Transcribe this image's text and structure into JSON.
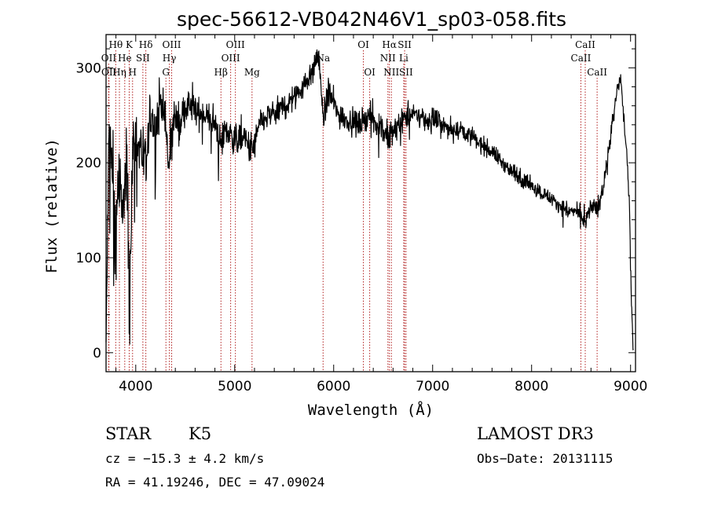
{
  "chart_data": {
    "type": "line",
    "title": "spec-56612-VB042N46V1_sp03-058.fits",
    "xlabel": "Wavelength (Å)",
    "ylabel": "Flux (relative)",
    "xlim": [
      3700,
      9050
    ],
    "ylim": [
      -20,
      335
    ],
    "xticks": [
      4000,
      5000,
      6000,
      7000,
      8000,
      9000
    ],
    "yticks": [
      0,
      100,
      200,
      300
    ],
    "xtick_labels": [
      "4000",
      "5000",
      "6000",
      "7000",
      "8000",
      "9000"
    ],
    "ytick_labels": [
      "0",
      "100",
      "200",
      "300"
    ],
    "spectrum_anchor_points": {
      "wavelength": [
        3700,
        3730,
        3760,
        3790,
        3820,
        3850,
        3880,
        3910,
        3935,
        3970,
        4000,
        4050,
        4100,
        4150,
        4200,
        4250,
        4300,
        4340,
        4380,
        4450,
        4500,
        4600,
        4700,
        4800,
        4861,
        4900,
        5000,
        5100,
        5175,
        5250,
        5350,
        5450,
        5550,
        5650,
        5750,
        5800,
        5850,
        5893,
        5950,
        6050,
        6150,
        6250,
        6350,
        6450,
        6563,
        6650,
        6750,
        6850,
        6950,
        7050,
        7150,
        7300,
        7450,
        7600,
        7750,
        7900,
        8050,
        8200,
        8350,
        8450,
        8500,
        8542,
        8600,
        8662,
        8720,
        8780,
        8830,
        8870,
        8900,
        8930,
        8960,
        8990,
        9010,
        9030
      ],
      "flux": [
        10,
        230,
        200,
        110,
        180,
        160,
        150,
        200,
        60,
        210,
        230,
        215,
        190,
        250,
        230,
        270,
        240,
        190,
        250,
        240,
        260,
        255,
        250,
        240,
        220,
        235,
        225,
        225,
        210,
        240,
        250,
        255,
        265,
        275,
        290,
        300,
        315,
        245,
        275,
        250,
        245,
        240,
        250,
        240,
        225,
        240,
        250,
        250,
        245,
        245,
        235,
        235,
        222,
        212,
        195,
        182,
        172,
        162,
        150,
        148,
        145,
        135,
        155,
        150,
        172,
        215,
        250,
        280,
        290,
        250,
        210,
        150,
        50,
        -5
      ],
      "noise": [
        12,
        45,
        55,
        60,
        60,
        60,
        55,
        50,
        55,
        50,
        40,
        30,
        35,
        30,
        30,
        28,
        25,
        30,
        25,
        20,
        18,
        18,
        18,
        18,
        25,
        18,
        18,
        15,
        25,
        15,
        15,
        15,
        15,
        15,
        15,
        15,
        15,
        20,
        18,
        15,
        15,
        15,
        15,
        14,
        20,
        14,
        14,
        12,
        12,
        12,
        10,
        10,
        10,
        10,
        9,
        9,
        9,
        9,
        9,
        9,
        12,
        12,
        10,
        12,
        10,
        10,
        10,
        10,
        10,
        10,
        10,
        10,
        10,
        10
      ]
    },
    "lines": [
      {
        "label": "Hθ",
        "wavelength": 3798,
        "row": 0
      },
      {
        "label": "K",
        "wavelength": 3934,
        "row": 0
      },
      {
        "label": "Hδ",
        "wavelength": 4102,
        "row": 0
      },
      {
        "label": "OIII",
        "wavelength": 4363,
        "row": 0
      },
      {
        "label": "OIII",
        "wavelength": 5007,
        "row": 0
      },
      {
        "label": "OI",
        "wavelength": 6300,
        "row": 0
      },
      {
        "label": "Hα",
        "wavelength": 6563,
        "row": 0
      },
      {
        "label": "SII",
        "wavelength": 6717,
        "row": 0
      },
      {
        "label": "CaII",
        "wavelength": 8542,
        "row": 0
      },
      {
        "label": "OII",
        "wavelength": 3727,
        "row": 1
      },
      {
        "label": "He",
        "wavelength": 3889,
        "row": 1
      },
      {
        "label": "SII",
        "wavelength": 4072,
        "row": 1
      },
      {
        "label": "Hγ",
        "wavelength": 4340,
        "row": 1
      },
      {
        "label": "OIII",
        "wavelength": 4959,
        "row": 1
      },
      {
        "label": "Na",
        "wavelength": 5893,
        "row": 1
      },
      {
        "label": "NII",
        "wavelength": 6548,
        "row": 1
      },
      {
        "label": "Li",
        "wavelength": 6708,
        "row": 1
      },
      {
        "label": "CaII",
        "wavelength": 8498,
        "row": 1
      },
      {
        "label": "OII",
        "wavelength": 3729,
        "row": 2
      },
      {
        "label": "Hη",
        "wavelength": 3835,
        "row": 2
      },
      {
        "label": "H",
        "wavelength": 3968,
        "row": 2
      },
      {
        "label": "G",
        "wavelength": 4305,
        "row": 2
      },
      {
        "label": "Hβ",
        "wavelength": 4861,
        "row": 2
      },
      {
        "label": "Mg",
        "wavelength": 5175,
        "row": 2
      },
      {
        "label": "OI",
        "wavelength": 6364,
        "row": 2
      },
      {
        "label": "NII",
        "wavelength": 6583,
        "row": 2
      },
      {
        "label": "SII",
        "wavelength": 6731,
        "row": 2
      },
      {
        "label": "CaII",
        "wavelength": 8662,
        "row": 2
      }
    ],
    "line_color": "#b22222",
    "trace_color": "#000000"
  },
  "info": {
    "class_label": "STAR",
    "subclass": "K5",
    "survey": "LAMOST DR3",
    "redshift": "cz = −15.3 ± 4.2 km/s",
    "obs_date": "Obs−Date: 20131115",
    "coords": "RA =  41.19246, DEC =  47.09024"
  }
}
